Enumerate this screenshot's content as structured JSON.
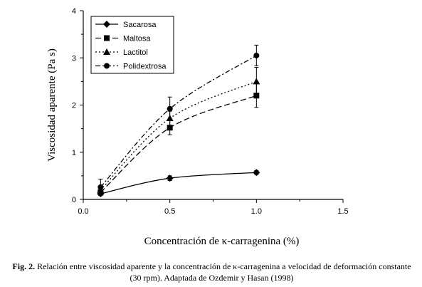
{
  "chart_data": {
    "type": "line",
    "xlabel": "Concentración de κ-carragenina (%)",
    "ylabel": "Viscosidad aparente (Pa s)",
    "xlim": [
      0.0,
      1.5
    ],
    "ylim": [
      0,
      4
    ],
    "xticks": [
      "0.0",
      "0.5",
      "1.0",
      "1.5"
    ],
    "yticks": [
      "0",
      "1",
      "2",
      "3",
      "4"
    ],
    "grid": false,
    "legend_position": "top-left",
    "series": [
      {
        "name": "Sacarosa",
        "marker": "diamond",
        "dash": "solid",
        "x": [
          0.1,
          0.5,
          1.0
        ],
        "y": [
          0.12,
          0.45,
          0.57
        ],
        "err": [
          0.04,
          0.05,
          0.04
        ]
      },
      {
        "name": "Maltosa",
        "marker": "square",
        "dash": "long-dash",
        "x": [
          0.1,
          0.5,
          1.0
        ],
        "y": [
          0.15,
          1.52,
          2.2
        ],
        "err": [
          0.05,
          0.15,
          0.25
        ]
      },
      {
        "name": "Lactitol",
        "marker": "triangle",
        "dash": "dotted",
        "x": [
          0.1,
          0.5,
          1.0
        ],
        "y": [
          0.2,
          1.72,
          2.5
        ],
        "err": [
          0.05,
          0.15,
          0.3
        ]
      },
      {
        "name": "Polidextrosa",
        "marker": "circle",
        "dash": "dash-dot",
        "x": [
          0.1,
          0.5,
          1.0
        ],
        "y": [
          0.26,
          1.92,
          3.05
        ],
        "err": [
          0.17,
          0.25,
          0.22
        ]
      }
    ]
  },
  "caption": {
    "figure_label": "Fig. 2.",
    "text": " Relación entre viscosidad aparente y la concentración de κ-carragenina a velocidad de deformación constante (30 rpm). Adaptada de Ozdemir y Hasan (1998)"
  }
}
